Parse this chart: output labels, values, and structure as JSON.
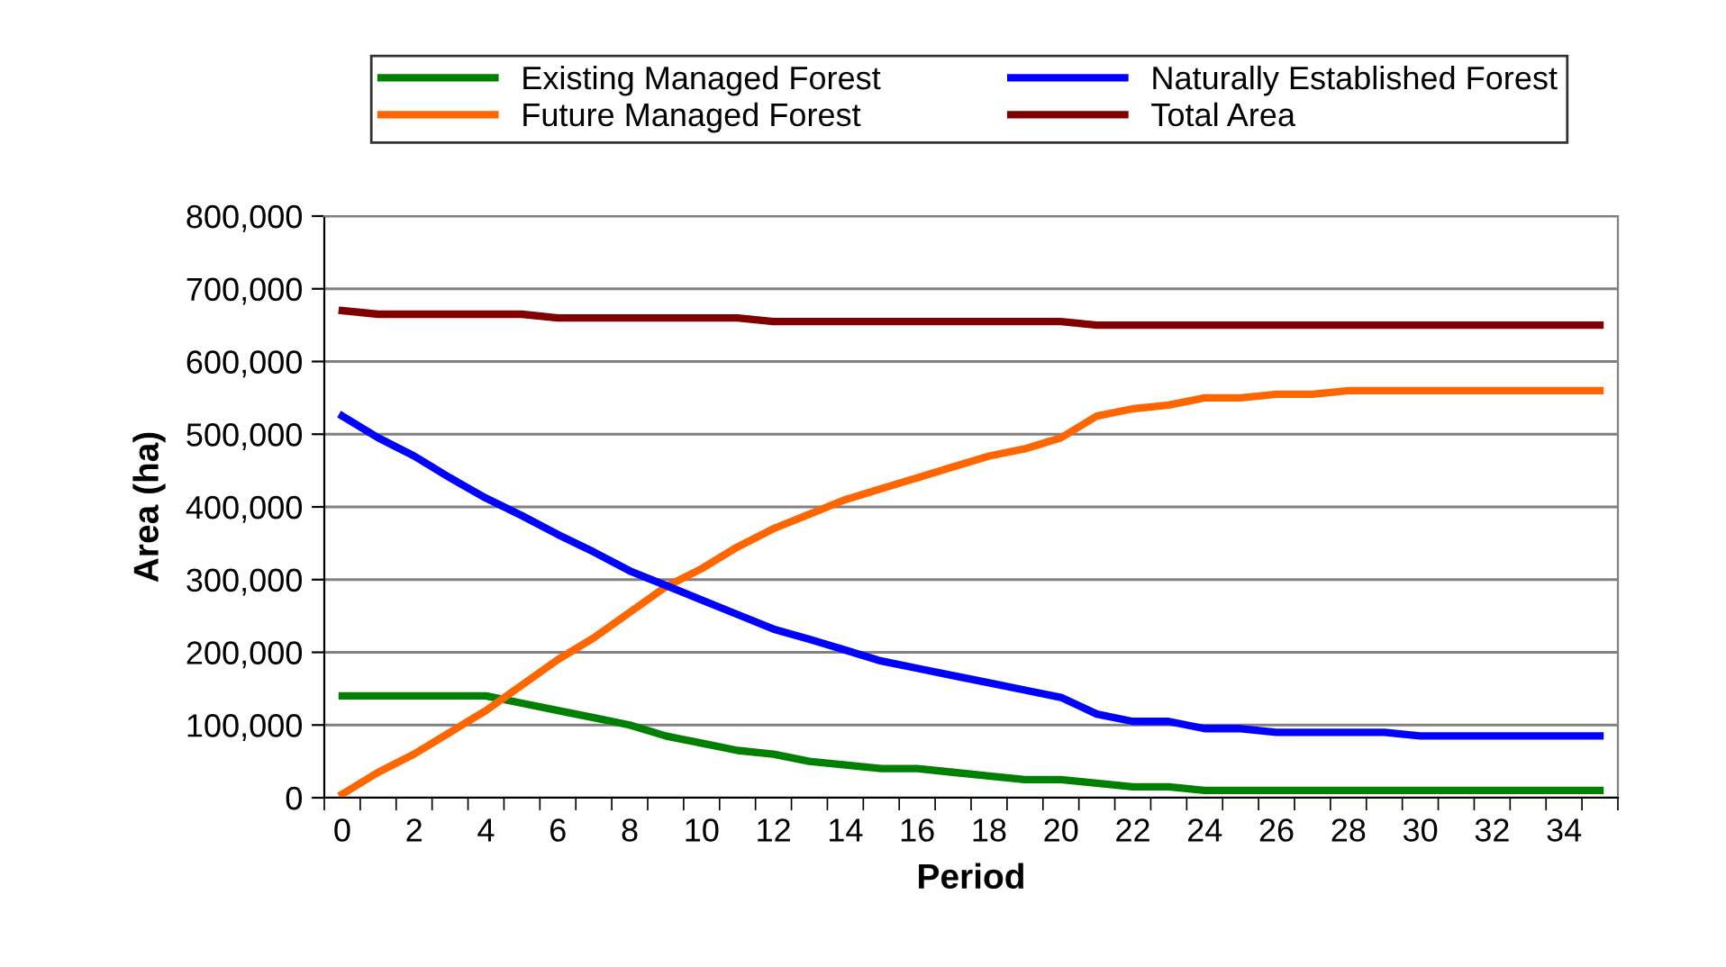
{
  "chart_data": {
    "type": "line",
    "xlabel": "Period",
    "ylabel": "Area (ha)",
    "categories": [
      "0",
      null,
      "2",
      null,
      "4",
      null,
      "6",
      null,
      "8",
      null,
      "10",
      null,
      "12",
      null,
      "14",
      null,
      "16",
      null,
      "18",
      null,
      "20",
      null,
      "22",
      null,
      "24",
      null,
      "26",
      null,
      "28",
      null,
      "30",
      null,
      "32",
      null,
      "34",
      null
    ],
    "series": [
      {
        "name": "Existing Managed Forest",
        "color": "#008000",
        "values": [
          140000,
          140000,
          140000,
          140000,
          140000,
          130000,
          120000,
          110000,
          100000,
          85000,
          75000,
          65000,
          60000,
          50000,
          45000,
          40000,
          40000,
          35000,
          30000,
          25000,
          25000,
          20000,
          15000,
          15000,
          10000,
          10000,
          10000,
          10000,
          10000,
          10000,
          10000,
          10000,
          10000,
          10000,
          10000,
          10000
        ]
      },
      {
        "name": "Future Managed Forest",
        "color": "#ff6600",
        "values": [
          5000,
          35000,
          60000,
          90000,
          120000,
          155000,
          190000,
          220000,
          255000,
          290000,
          315000,
          345000,
          370000,
          390000,
          410000,
          425000,
          440000,
          455000,
          470000,
          480000,
          495000,
          525000,
          535000,
          540000,
          550000,
          550000,
          555000,
          555000,
          560000,
          560000,
          560000,
          560000,
          560000,
          560000,
          560000,
          560000
        ]
      },
      {
        "name": "Naturally Established Forest",
        "color": "#0000ff",
        "values": [
          525000,
          495000,
          470000,
          440000,
          412000,
          388000,
          362000,
          338000,
          312000,
          292000,
          272000,
          252000,
          232000,
          218000,
          203000,
          188000,
          178000,
          168000,
          158000,
          148000,
          138000,
          115000,
          105000,
          105000,
          95000,
          95000,
          90000,
          90000,
          90000,
          90000,
          85000,
          85000,
          85000,
          85000,
          85000,
          85000
        ]
      },
      {
        "name": "Total Area",
        "color": "#800000",
        "values": [
          670000,
          665000,
          665000,
          665000,
          665000,
          665000,
          660000,
          660000,
          660000,
          660000,
          660000,
          660000,
          655000,
          655000,
          655000,
          655000,
          655000,
          655000,
          655000,
          655000,
          655000,
          650000,
          650000,
          650000,
          650000,
          650000,
          650000,
          650000,
          650000,
          650000,
          650000,
          650000,
          650000,
          650000,
          650000,
          650000
        ]
      }
    ],
    "ylim": [
      0,
      800000
    ],
    "yticks": [
      {
        "value": 0,
        "label": "0"
      },
      {
        "value": 100000,
        "label": "100,000"
      },
      {
        "value": 200000,
        "label": "200,000"
      },
      {
        "value": 300000,
        "label": "300,000"
      },
      {
        "value": 400000,
        "label": "400,000"
      },
      {
        "value": 500000,
        "label": "500,000"
      },
      {
        "value": 600000,
        "label": "600,000"
      },
      {
        "value": 700000,
        "label": "700,000"
      },
      {
        "value": 800000,
        "label": "800,000"
      }
    ],
    "grid": "y",
    "legend": "top",
    "marker": "none",
    "line_style": "solid"
  }
}
